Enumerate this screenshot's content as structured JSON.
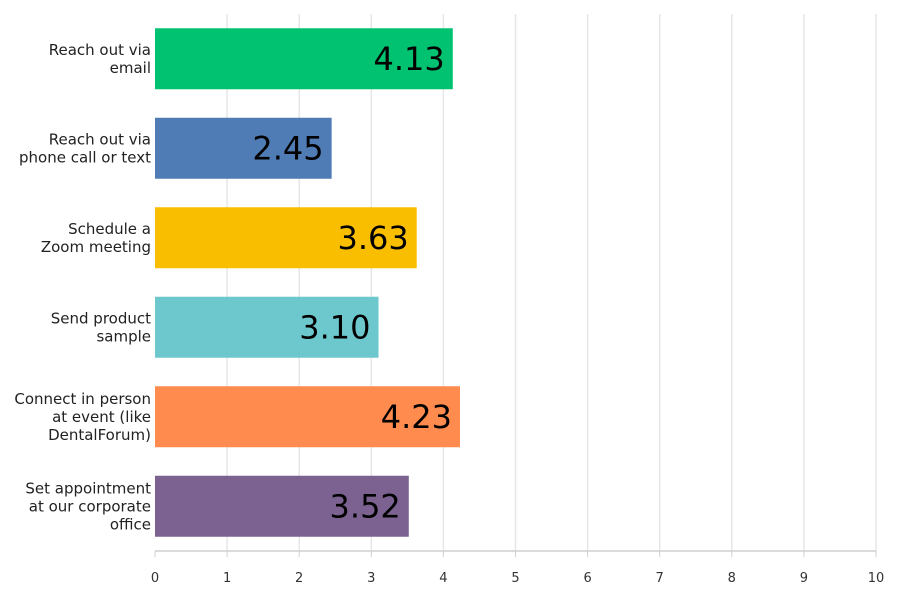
{
  "chart_data": {
    "type": "bar",
    "orientation": "horizontal",
    "categories": [
      [
        "Reach out via",
        "email"
      ],
      [
        "Reach out via",
        "phone call or text"
      ],
      [
        "Schedule a",
        "Zoom meeting"
      ],
      [
        "Send product",
        "sample"
      ],
      [
        "Connect in person",
        "at event (like",
        "DentalForum)"
      ],
      [
        "Set appointment",
        "at our corporate",
        "office"
      ]
    ],
    "values": [
      4.13,
      2.45,
      3.63,
      3.1,
      4.23,
      3.52
    ],
    "value_labels": [
      "4.13",
      "2.45",
      "3.63",
      "3.10",
      "4.23",
      "3.52"
    ],
    "colors": [
      "#00C271",
      "#507CB6",
      "#F9BE00",
      "#6DC8CE",
      "#FF8B4F",
      "#7B6291"
    ],
    "xlim": [
      0,
      10
    ],
    "xticks": [
      "0",
      "1",
      "2",
      "3",
      "4",
      "5",
      "6",
      "7",
      "8",
      "9",
      "10"
    ],
    "grid": true,
    "title": "",
    "xlabel": "",
    "ylabel": ""
  }
}
